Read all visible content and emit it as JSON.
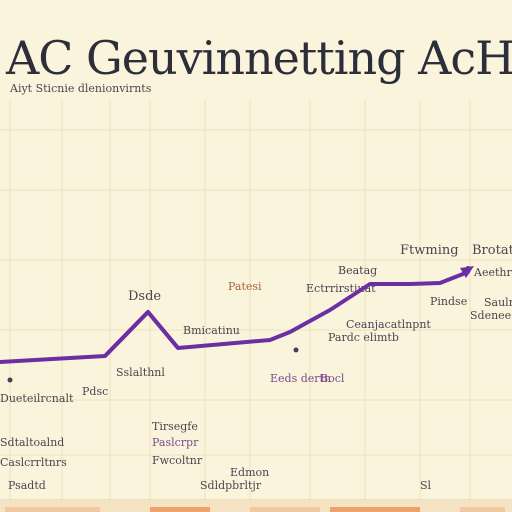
{
  "title": "AC Geuvinnetting AcH",
  "chart_data": {
    "type": "line",
    "title": "AC Geuvinnetting AcH",
    "x": [
      0,
      1,
      2,
      3,
      4,
      5,
      6,
      7,
      8,
      9,
      10,
      11,
      12
    ],
    "series": [
      {
        "values": [
          22,
          23,
          25,
          27,
          25,
          26,
          27,
          28,
          31,
          32,
          36,
          36,
          38
        ]
      }
    ],
    "ylim": [
      0,
      45
    ],
    "grid": true,
    "color": "#6b2fa3",
    "annotations": [
      "Dsde",
      "Bmicatinu",
      "Beatag",
      "Ftwming",
      "Brotation tuspe",
      "Aeethr",
      "Patesi",
      "Ectrrirstiuat",
      "Ceanjacatlnpnt",
      "Pardc elimtb",
      "Pindse",
      "Saulnb",
      "Sdenee",
      "Eeds dertn",
      "Dueteilrcnalt",
      "Sdtaltoalnd",
      "Sslalthnl",
      "Tirsegfe",
      "Paslcrpr",
      "Fwcoltnr",
      "Edmon",
      "Sdldpbrltjr",
      "Pdsc",
      "Caslcrrltnrs",
      "Bocl",
      "Sl",
      "Psadtd"
    ],
    "header_text": "Aiyt Sticnie dlenionvirnts"
  }
}
